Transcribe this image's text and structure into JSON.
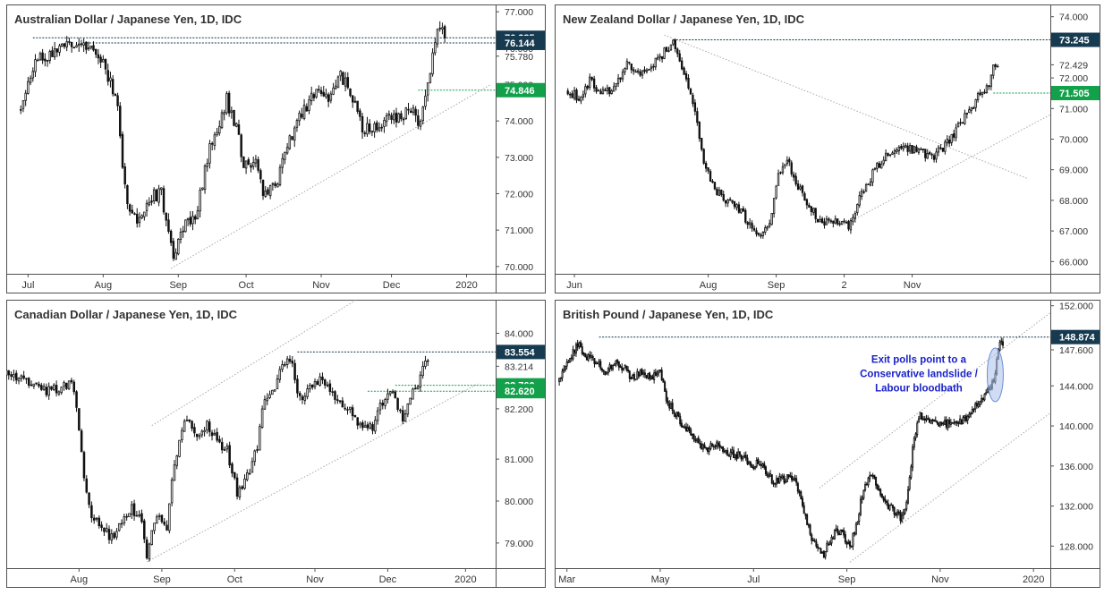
{
  "colors": {
    "navy": "#163a50",
    "green": "#12a04a",
    "candle": "#111111",
    "trend": "#a9a9a9",
    "annotation_text": "#1a22c8",
    "annotation_ellipse": "#a8c0ea"
  },
  "chart_data": [
    {
      "type": "candlestick",
      "title": "Australian Dollar / Japanese Yen, 1D, IDC",
      "ylim": [
        69.8,
        77.2
      ],
      "y_ticks": [
        "77.000",
        "76.000",
        "75.780",
        "75.000",
        "74.000",
        "73.000",
        "72.000",
        "71.000",
        "70.000"
      ],
      "y_tick_values": [
        77.0,
        76.0,
        75.78,
        75.0,
        74.0,
        73.0,
        72.0,
        71.0,
        70.0
      ],
      "x_ticks": [
        "Jul",
        "Aug",
        "Sep",
        "Oct",
        "Nov",
        "Dec",
        "2020"
      ],
      "x_tick_days": [
        3,
        34,
        65,
        93,
        124,
        153,
        184
      ],
      "x_domain": [
        -6,
        196
      ],
      "start_value": 74.3,
      "last_day": 175,
      "anchors": [
        [
          0,
          74.3
        ],
        [
          5,
          75.5
        ],
        [
          12,
          75.9
        ],
        [
          18,
          76.0
        ],
        [
          27,
          76.1
        ],
        [
          33,
          75.8
        ],
        [
          40,
          74.5
        ],
        [
          42,
          72.8
        ],
        [
          45,
          71.4
        ],
        [
          50,
          71.3
        ],
        [
          54,
          71.9
        ],
        [
          58,
          72.0
        ],
        [
          63,
          70.3
        ],
        [
          68,
          71.2
        ],
        [
          72,
          71.4
        ],
        [
          78,
          73.2
        ],
        [
          85,
          74.6
        ],
        [
          89,
          73.8
        ],
        [
          92,
          72.9
        ],
        [
          97,
          72.9
        ],
        [
          100,
          71.9
        ],
        [
          105,
          72.2
        ],
        [
          110,
          73.4
        ],
        [
          116,
          74.2
        ],
        [
          121,
          74.7
        ],
        [
          127,
          74.7
        ],
        [
          132,
          75.3
        ],
        [
          137,
          74.6
        ],
        [
          141,
          73.8
        ],
        [
          147,
          73.9
        ],
        [
          152,
          74.1
        ],
        [
          158,
          74.2
        ],
        [
          161,
          74.3
        ],
        [
          164,
          74.0
        ],
        [
          166,
          74.2
        ],
        [
          168,
          75.1
        ],
        [
          170,
          75.8
        ],
        [
          172,
          76.4
        ]
      ],
      "volatility": 0.34,
      "seed": 11,
      "tags": [
        {
          "label": "76.285",
          "value": 76.285,
          "color": "navy",
          "line_from_day": 5
        },
        {
          "label": "76.144",
          "value": 76.144,
          "color": "navy",
          "line_from_day": 27
        },
        {
          "label": "74.846",
          "value": 74.846,
          "color": "green",
          "line_from_day": 164
        }
      ],
      "trendlines": [
        {
          "from": [
            62,
            69.95
          ],
          "to": [
            194,
            75.0
          ]
        }
      ]
    },
    {
      "type": "candlestick",
      "title": "New Zealand Dollar / Japanese Yen, 1D, IDC",
      "ylim": [
        65.6,
        74.4
      ],
      "y_ticks": [
        "74.000",
        "72.429",
        "72.000",
        "71.000",
        "70.000",
        "69.000",
        "68.000",
        "67.000",
        "66.000"
      ],
      "y_tick_values": [
        74.0,
        72.429,
        72.0,
        71.0,
        70.0,
        69.0,
        68.0,
        67.0,
        66.0
      ],
      "x_ticks": [
        "Jun",
        "Aug",
        "Sep",
        "2",
        "Nov"
      ],
      "x_tick_days": [
        3,
        64,
        95,
        126,
        157
      ],
      "x_domain": [
        -6,
        220
      ],
      "start_value": 71.6,
      "last_day": 196,
      "anchors": [
        [
          0,
          71.6
        ],
        [
          6,
          71.3
        ],
        [
          10,
          71.9
        ],
        [
          16,
          71.5
        ],
        [
          21,
          71.7
        ],
        [
          27,
          72.4
        ],
        [
          33,
          72.2
        ],
        [
          40,
          72.5
        ],
        [
          48,
          73.2
        ],
        [
          54,
          72.0
        ],
        [
          58,
          71.0
        ],
        [
          62,
          69.2
        ],
        [
          66,
          68.5
        ],
        [
          70,
          68.1
        ],
        [
          76,
          67.9
        ],
        [
          82,
          67.3
        ],
        [
          88,
          66.8
        ],
        [
          92,
          67.2
        ],
        [
          96,
          68.9
        ],
        [
          100,
          69.3
        ],
        [
          104,
          68.6
        ],
        [
          110,
          67.8
        ],
        [
          116,
          67.2
        ],
        [
          122,
          67.4
        ],
        [
          128,
          67.2
        ],
        [
          134,
          68.2
        ],
        [
          140,
          69.0
        ],
        [
          146,
          69.5
        ],
        [
          152,
          69.7
        ],
        [
          160,
          69.6
        ],
        [
          166,
          69.4
        ],
        [
          172,
          69.8
        ],
        [
          178,
          70.4
        ],
        [
          184,
          71.0
        ],
        [
          188,
          71.5
        ],
        [
          192,
          71.8
        ],
        [
          194,
          72.4
        ],
        [
          196,
          72.4
        ]
      ],
      "volatility": 0.26,
      "seed": 23,
      "tags": [
        {
          "label": "73.245",
          "value": 73.245,
          "color": "navy",
          "line_from_day": 48
        },
        {
          "label": "71.505",
          "value": 71.505,
          "color": "green",
          "line_from_day": 194
        }
      ],
      "trendlines": [
        {
          "from": [
            44,
            73.4
          ],
          "to": [
            210,
            68.7
          ]
        },
        {
          "from": [
            126,
            67.2
          ],
          "to": [
            220,
            70.8
          ]
        }
      ]
    },
    {
      "type": "candlestick",
      "title": "Canadian Dollar / Japanese Yen, 1D, IDC",
      "ylim": [
        78.4,
        84.8
      ],
      "y_ticks": [
        "84.000",
        "83.214",
        "82.200",
        "81.000",
        "80.000",
        "79.000"
      ],
      "y_tick_values": [
        84.0,
        83.214,
        82.2,
        81.0,
        80.0,
        79.0
      ],
      "x_ticks": [
        "Aug",
        "Sep",
        "Oct",
        "Nov",
        "Dec",
        "2020"
      ],
      "x_tick_days": [
        29,
        62,
        91,
        123,
        152,
        183
      ],
      "x_domain": [
        0,
        195
      ],
      "start_value": 83.0,
      "last_day": 168,
      "anchors": [
        [
          0,
          83.0
        ],
        [
          8,
          82.9
        ],
        [
          14,
          82.6
        ],
        [
          20,
          82.7
        ],
        [
          26,
          82.8
        ],
        [
          28,
          82.3
        ],
        [
          31,
          80.6
        ],
        [
          34,
          79.6
        ],
        [
          38,
          79.4
        ],
        [
          42,
          79.1
        ],
        [
          46,
          79.5
        ],
        [
          50,
          79.8
        ],
        [
          54,
          79.6
        ],
        [
          56,
          78.7
        ],
        [
          60,
          79.7
        ],
        [
          64,
          79.4
        ],
        [
          66,
          80.6
        ],
        [
          70,
          81.6
        ],
        [
          72,
          82.0
        ],
        [
          76,
          81.5
        ],
        [
          80,
          81.8
        ],
        [
          84,
          81.4
        ],
        [
          88,
          81.2
        ],
        [
          92,
          80.2
        ],
        [
          96,
          80.6
        ],
        [
          100,
          81.3
        ],
        [
          102,
          82.2
        ],
        [
          106,
          82.6
        ],
        [
          110,
          83.2
        ],
        [
          114,
          83.4
        ],
        [
          116,
          82.6
        ],
        [
          118,
          82.5
        ],
        [
          122,
          82.7
        ],
        [
          126,
          82.9
        ],
        [
          130,
          82.6
        ],
        [
          134,
          82.3
        ],
        [
          138,
          82.1
        ],
        [
          142,
          81.7
        ],
        [
          146,
          81.8
        ],
        [
          150,
          82.4
        ],
        [
          154,
          82.6
        ],
        [
          158,
          81.9
        ],
        [
          160,
          82.2
        ],
        [
          162,
          82.6
        ],
        [
          164,
          82.8
        ],
        [
          166,
          83.2
        ],
        [
          168,
          83.3
        ]
      ],
      "volatility": 0.22,
      "seed": 37,
      "tags": [
        {
          "label": "83.554",
          "value": 83.554,
          "color": "navy",
          "line_from_day": 116
        },
        {
          "label": "82.760",
          "value": 82.76,
          "color": "green",
          "line_from_day": 155
        },
        {
          "label": "82.620",
          "value": 82.62,
          "color": "green",
          "line_from_day": 144
        }
      ],
      "trendlines": [
        {
          "from": [
            56,
            78.55
          ],
          "to": [
            188,
            82.8
          ]
        },
        {
          "from": [
            58,
            81.8
          ],
          "to": [
            145,
            85.0
          ]
        }
      ]
    },
    {
      "type": "candlestick",
      "title": "British Pound / Japanese Yen, 1D, IDC",
      "ylim": [
        125.8,
        152.6
      ],
      "y_ticks": [
        "152.000",
        "147.600",
        "144.000",
        "140.000",
        "136.000",
        "132.000",
        "128.000"
      ],
      "y_tick_values": [
        152.0,
        147.6,
        144.0,
        140.0,
        136.0,
        132.0,
        128.0
      ],
      "x_ticks": [
        "Mar",
        "May",
        "Jul",
        "Sep",
        "Nov",
        "2020"
      ],
      "x_tick_days": [
        5,
        66,
        127,
        188,
        249,
        310
      ],
      "x_domain": [
        -3,
        321
      ],
      "start_value": 144.5,
      "last_day": 290,
      "anchors": [
        [
          0,
          144.5
        ],
        [
          6,
          146.3
        ],
        [
          12,
          148.2
        ],
        [
          18,
          147.0
        ],
        [
          24,
          146.5
        ],
        [
          30,
          145.3
        ],
        [
          36,
          146.3
        ],
        [
          42,
          145.8
        ],
        [
          48,
          144.8
        ],
        [
          54,
          145.5
        ],
        [
          60,
          144.8
        ],
        [
          66,
          145.8
        ],
        [
          70,
          142.5
        ],
        [
          76,
          141.2
        ],
        [
          82,
          139.8
        ],
        [
          88,
          138.9
        ],
        [
          96,
          137.6
        ],
        [
          102,
          138.2
        ],
        [
          110,
          137.4
        ],
        [
          118,
          137.0
        ],
        [
          126,
          136.1
        ],
        [
          132,
          136.3
        ],
        [
          140,
          134.4
        ],
        [
          148,
          134.8
        ],
        [
          154,
          134.6
        ],
        [
          160,
          131.6
        ],
        [
          164,
          129.2
        ],
        [
          168,
          128.0
        ],
        [
          172,
          127.0
        ],
        [
          178,
          128.8
        ],
        [
          182,
          129.7
        ],
        [
          186,
          129.0
        ],
        [
          190,
          127.8
        ],
        [
          194,
          130.0
        ],
        [
          198,
          133.2
        ],
        [
          204,
          135.0
        ],
        [
          208,
          133.8
        ],
        [
          212,
          132.6
        ],
        [
          218,
          131.6
        ],
        [
          224,
          130.7
        ],
        [
          228,
          133.5
        ],
        [
          232,
          139.0
        ],
        [
          236,
          141.0
        ],
        [
          242,
          140.2
        ],
        [
          250,
          140.4
        ],
        [
          258,
          140.1
        ],
        [
          264,
          140.5
        ],
        [
          270,
          141.6
        ],
        [
          276,
          142.4
        ],
        [
          280,
          143.3
        ],
        [
          284,
          144.3
        ],
        [
          286,
          146.4
        ],
        [
          288,
          148.4
        ]
      ],
      "volatility": 0.75,
      "seed": 53,
      "tags": [
        {
          "label": "148.874",
          "value": 148.874,
          "color": "navy",
          "line_from_day": 26
        }
      ],
      "trendlines": [
        {
          "from": [
            170,
            133.8
          ],
          "to": [
            321,
            151.3
          ]
        },
        {
          "from": [
            190,
            126.4
          ],
          "to": [
            321,
            141.3
          ]
        }
      ],
      "annotation": {
        "lines": [
          "Exit polls point to a",
          "Conservative landslide /",
          "Labour bloodbath"
        ],
        "at_day": 235,
        "at_value": 146.3,
        "ellipse_day": 285,
        "ellipse_value": 145.1
      }
    }
  ]
}
